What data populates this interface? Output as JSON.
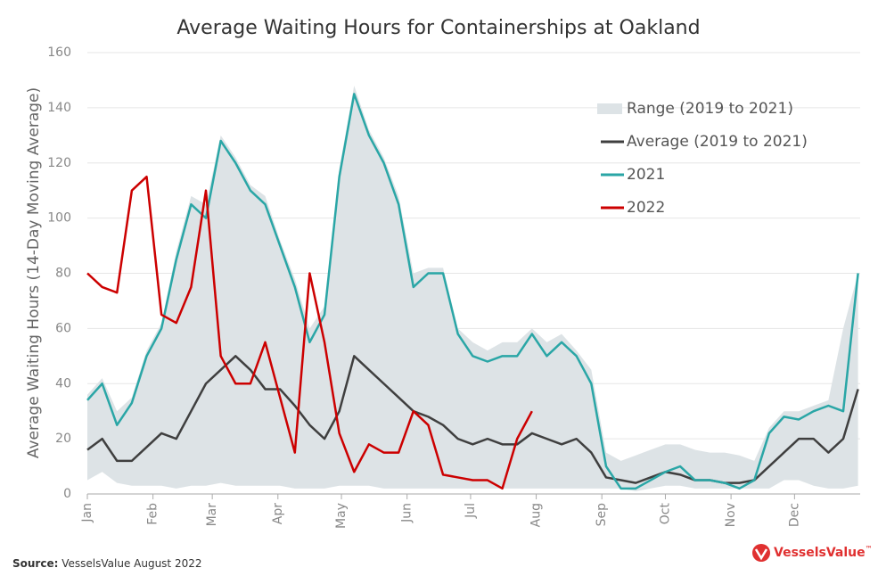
{
  "chart_data": {
    "type": "line",
    "title": "Average Waiting Hours for Containerships at Oakland",
    "ylabel": "Average Waiting Hours (14-Day Moving Average)",
    "source_label": "Source:",
    "source": "VesselsValue August 2022",
    "logo": "VesselsValue",
    "logo_mark": "™",
    "xlim": [
      0,
      365
    ],
    "xticks": [
      {
        "value": 0,
        "label": "Jan"
      },
      {
        "value": 31,
        "label": "Feb"
      },
      {
        "value": 59,
        "label": "Mar"
      },
      {
        "value": 90,
        "label": "Apr"
      },
      {
        "value": 120,
        "label": "May"
      },
      {
        "value": 151,
        "label": "Jun"
      },
      {
        "value": 181,
        "label": "Jul"
      },
      {
        "value": 212,
        "label": "Aug"
      },
      {
        "value": 243,
        "label": "Sep"
      },
      {
        "value": 273,
        "label": "Oct"
      },
      {
        "value": 304,
        "label": "Nov"
      },
      {
        "value": 334,
        "label": "Dec"
      }
    ],
    "ylim": [
      0,
      160
    ],
    "yticks": [
      0,
      20,
      40,
      60,
      80,
      100,
      120,
      140,
      160
    ],
    "grid": true,
    "legend": "upper right",
    "x": [
      0,
      7,
      14,
      21,
      28,
      35,
      42,
      49,
      56,
      63,
      70,
      77,
      84,
      91,
      98,
      105,
      112,
      119,
      126,
      133,
      140,
      147,
      154,
      161,
      168,
      175,
      182,
      189,
      196,
      203,
      210,
      217,
      224,
      231,
      238,
      245,
      252,
      259,
      266,
      273,
      280,
      287,
      294,
      301,
      308,
      315,
      322,
      329,
      336,
      343,
      350,
      357,
      364
    ],
    "range": {
      "name": "Range (2019 to 2021)",
      "color": "#dde3e6",
      "low": [
        5,
        8,
        4,
        3,
        3,
        3,
        2,
        3,
        3,
        4,
        3,
        3,
        3,
        3,
        2,
        2,
        2,
        3,
        3,
        3,
        2,
        2,
        2,
        2,
        2,
        2,
        2,
        2,
        2,
        2,
        2,
        2,
        2,
        2,
        2,
        2,
        2,
        1,
        2,
        3,
        3,
        2,
        2,
        2,
        2,
        2,
        2,
        5,
        5,
        3,
        2,
        2,
        3
      ],
      "high": [
        36,
        42,
        30,
        35,
        52,
        62,
        88,
        108,
        105,
        130,
        122,
        112,
        108,
        92,
        78,
        60,
        68,
        118,
        148,
        132,
        122,
        108,
        80,
        82,
        82,
        60,
        55,
        52,
        55,
        55,
        60,
        55,
        58,
        52,
        45,
        15,
        12,
        14,
        16,
        18,
        18,
        16,
        15,
        15,
        14,
        12,
        24,
        30,
        30,
        32,
        34,
        60,
        80
      ]
    },
    "series": [
      {
        "name": "Average (2019 to 2021)",
        "color": "#3f3f3f",
        "values": [
          16,
          20,
          12,
          12,
          17,
          22,
          20,
          30,
          40,
          45,
          50,
          45,
          38,
          38,
          32,
          25,
          20,
          30,
          50,
          45,
          40,
          35,
          30,
          28,
          25,
          20,
          18,
          20,
          18,
          18,
          22,
          20,
          18,
          20,
          15,
          6,
          5,
          4,
          6,
          8,
          7,
          5,
          5,
          4,
          4,
          5,
          10,
          15,
          20,
          20,
          15,
          20,
          38
        ]
      },
      {
        "name": "2021",
        "color": "#2aa6a6",
        "values": [
          34,
          40,
          25,
          33,
          50,
          60,
          85,
          105,
          100,
          128,
          120,
          110,
          105,
          90,
          75,
          55,
          65,
          115,
          145,
          130,
          120,
          105,
          75,
          80,
          80,
          58,
          50,
          48,
          50,
          50,
          58,
          50,
          55,
          50,
          40,
          10,
          2,
          2,
          5,
          8,
          10,
          5,
          5,
          4,
          2,
          5,
          22,
          28,
          27,
          30,
          32,
          30,
          80
        ]
      },
      {
        "name": "2022",
        "color": "#cc0000",
        "values": [
          80,
          75,
          73,
          110,
          115,
          65,
          62,
          75,
          110,
          50,
          40,
          40,
          55,
          35,
          15,
          80,
          55,
          22,
          8,
          18,
          15,
          15,
          30,
          25,
          7,
          6,
          5,
          5,
          2,
          20,
          30,
          null,
          null,
          null,
          null,
          null,
          null,
          null,
          null,
          null,
          null,
          null,
          null,
          null,
          null,
          null,
          null,
          null,
          null,
          null,
          null,
          null,
          null
        ]
      }
    ]
  }
}
